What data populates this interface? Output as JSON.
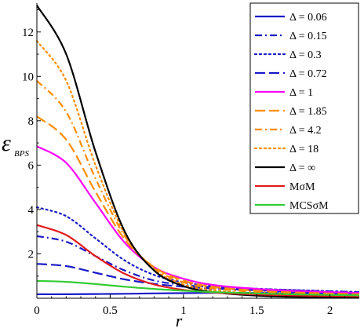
{
  "chart_data": {
    "type": "line",
    "xlabel": "r",
    "ylabel": "ε",
    "ylabel_sub": "BPS",
    "xlim": [
      0,
      2.2
    ],
    "ylim": [
      0,
      13.3
    ],
    "x_ticks": [
      0,
      0.5,
      1,
      1.5,
      2
    ],
    "x_tick_labels": [
      "0",
      "0.5",
      "1",
      "1.5",
      "2"
    ],
    "y_ticks": [
      2,
      4,
      6,
      8,
      10,
      12
    ],
    "y_tick_labels": [
      "2",
      "4",
      "6",
      "8",
      "10",
      "12"
    ],
    "grid": false,
    "legend_position": "top-right",
    "series": [
      {
        "name": "Δ = 0.06",
        "color": "#1a1ac8",
        "dash": "solid",
        "x": [
          0,
          0.2,
          0.4,
          0.6,
          0.8,
          1.0,
          1.2,
          1.5,
          1.8,
          2.2
        ],
        "y": [
          0.18,
          0.18,
          0.19,
          0.2,
          0.22,
          0.23,
          0.24,
          0.24,
          0.23,
          0.21
        ]
      },
      {
        "name": "Δ = 0.15",
        "color": "#1a1ac8",
        "dash": "dashdot",
        "x": [
          0,
          0.2,
          0.4,
          0.6,
          0.8,
          1.0,
          1.2,
          1.5,
          1.8,
          2.2
        ],
        "y": [
          2.8,
          2.55,
          1.9,
          1.25,
          0.8,
          0.6,
          0.5,
          0.42,
          0.35,
          0.28
        ]
      },
      {
        "name": "Δ = 0.3",
        "color": "#1a1ac8",
        "dash": "dot",
        "x": [
          0,
          0.2,
          0.4,
          0.6,
          0.8,
          1.0,
          1.2,
          1.5,
          1.8,
          2.2
        ],
        "y": [
          4.1,
          3.7,
          2.7,
          1.7,
          1.05,
          0.72,
          0.55,
          0.43,
          0.36,
          0.28
        ]
      },
      {
        "name": "Δ = 0.72",
        "color": "#1a1ac8",
        "dash": "longdash",
        "x": [
          0,
          0.2,
          0.4,
          0.6,
          0.8,
          1.0,
          1.2,
          1.5,
          1.8,
          2.2
        ],
        "y": [
          1.55,
          1.45,
          1.15,
          0.85,
          0.65,
          0.52,
          0.44,
          0.36,
          0.3,
          0.24
        ]
      },
      {
        "name": "Δ = 1",
        "color": "#ff00ff",
        "dash": "solid",
        "x": [
          0,
          0.2,
          0.4,
          0.6,
          0.8,
          1.0,
          1.2,
          1.5,
          1.8,
          2.2
        ],
        "y": [
          6.85,
          6.1,
          4.3,
          2.5,
          1.4,
          0.88,
          0.6,
          0.42,
          0.32,
          0.24
        ]
      },
      {
        "name": "Δ = 1.85",
        "color": "#ff8c00",
        "dash": "longdash",
        "x": [
          0,
          0.2,
          0.4,
          0.6,
          0.8,
          1.0,
          1.2,
          1.5,
          1.8,
          2.2
        ],
        "y": [
          8.2,
          7.15,
          4.8,
          2.65,
          1.4,
          0.8,
          0.52,
          0.34,
          0.25,
          0.18
        ]
      },
      {
        "name": "Δ = 4.2",
        "color": "#ff8c00",
        "dash": "dashdot",
        "x": [
          0,
          0.2,
          0.4,
          0.6,
          0.8,
          1.0,
          1.2,
          1.5,
          1.8,
          2.2
        ],
        "y": [
          9.8,
          8.4,
          5.4,
          2.8,
          1.35,
          0.72,
          0.45,
          0.28,
          0.2,
          0.14
        ]
      },
      {
        "name": "Δ = 18",
        "color": "#ff8c00",
        "dash": "dot",
        "x": [
          0,
          0.2,
          0.4,
          0.6,
          0.8,
          1.0,
          1.2,
          1.5,
          1.8,
          2.2
        ],
        "y": [
          11.6,
          9.8,
          6.0,
          2.9,
          1.3,
          0.62,
          0.36,
          0.2,
          0.13,
          0.08
        ]
      },
      {
        "name": "Δ = ∞",
        "color": "#000000",
        "dash": "solid",
        "x": [
          0,
          0.2,
          0.4,
          0.6,
          0.8,
          1.0,
          1.2,
          1.5,
          1.8,
          2.2
        ],
        "y": [
          13.2,
          11.0,
          6.6,
          3.0,
          1.25,
          0.55,
          0.28,
          0.12,
          0.06,
          0.03
        ]
      },
      {
        "name": "MσM",
        "color": "#e31a1c",
        "dash": "solid",
        "x": [
          0,
          0.2,
          0.4,
          0.6,
          0.8,
          1.0,
          1.2,
          1.5,
          1.8,
          2.2
        ],
        "y": [
          3.3,
          2.85,
          1.9,
          1.1,
          0.62,
          0.38,
          0.26,
          0.17,
          0.12,
          0.08
        ]
      },
      {
        "name": "MCSσM",
        "color": "#33cc33",
        "dash": "solid",
        "x": [
          0,
          0.2,
          0.4,
          0.6,
          0.8,
          1.0,
          1.2,
          1.5,
          1.8,
          2.2
        ],
        "y": [
          0.78,
          0.74,
          0.64,
          0.52,
          0.42,
          0.34,
          0.28,
          0.22,
          0.17,
          0.13
        ]
      }
    ]
  }
}
